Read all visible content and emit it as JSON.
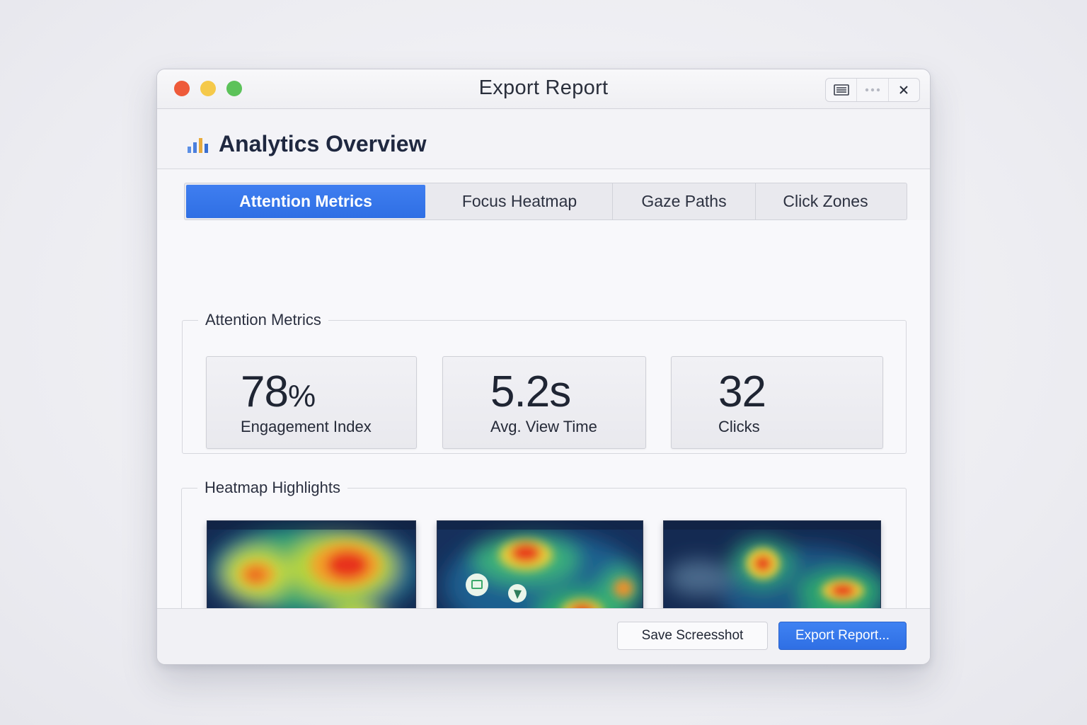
{
  "window": {
    "title": "Export Report",
    "controls": [
      "sidebar-icon",
      "more-icon",
      "close-icon"
    ]
  },
  "header": {
    "title": "Analytics Overview",
    "icon": "bar-chart-icon"
  },
  "tabs": [
    {
      "label": "Attention Metrics",
      "active": true
    },
    {
      "label": "Focus Heatmap",
      "active": false
    },
    {
      "label": "Gaze Paths",
      "active": false
    },
    {
      "label": "Click Zones",
      "active": false
    }
  ],
  "metrics_group": {
    "legend": "Attention Metrics",
    "items": [
      {
        "value": "78",
        "unit": "%",
        "label": "Engagement Index"
      },
      {
        "value": "5.2s",
        "unit": "",
        "label": "Avg. View Time"
      },
      {
        "value": "32",
        "unit": "",
        "label": "Clicks"
      }
    ]
  },
  "heatmap_group": {
    "legend": "Heatmap Highlights",
    "thumbnails": [
      "heatmap-thumbnail-1",
      "heatmap-thumbnail-2",
      "heatmap-thumbnail-3"
    ]
  },
  "footer": {
    "save_label": "Save Screesshot",
    "export_label": "Export Report..."
  },
  "colors": {
    "accent": "#3478e8",
    "close": "#ee5a3a",
    "minimize": "#f5c94a",
    "maximize": "#5cc25a"
  }
}
